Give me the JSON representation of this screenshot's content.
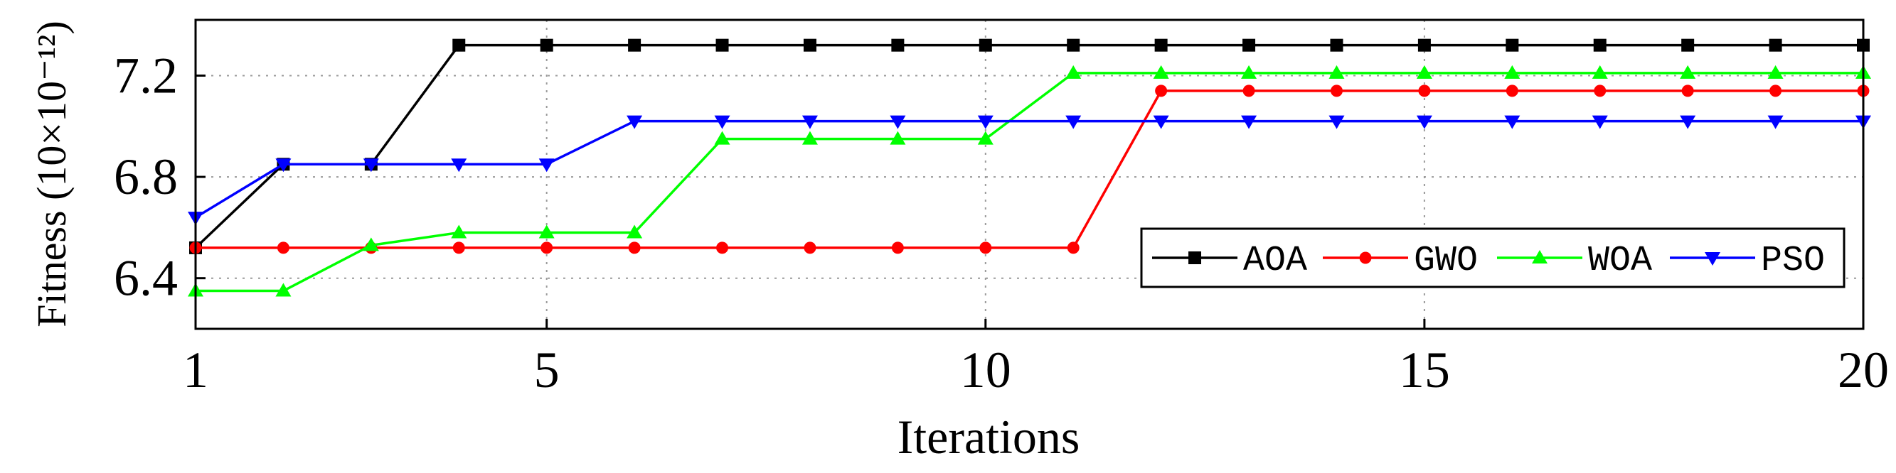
{
  "chart_data": {
    "type": "line",
    "xlabel": "Iterations",
    "ylabel": "Fitness (10×10⁻¹²)",
    "xlim": [
      1,
      20
    ],
    "ylim": [
      6.2,
      7.42
    ],
    "xticks": [
      1,
      5,
      10,
      15,
      20
    ],
    "xtick_labels": [
      "1",
      "5",
      "10",
      "15",
      "20"
    ],
    "yticks": [
      6.4,
      6.8,
      7.2
    ],
    "ytick_labels": [
      "6.4",
      "6.8",
      "7.2"
    ],
    "grid": true,
    "legend_placement": "bottom-right, single row",
    "series": [
      {
        "name": "AOA",
        "color": "#000000",
        "marker": "square",
        "x": [
          1,
          2,
          3,
          4,
          5,
          6,
          7,
          8,
          9,
          10,
          11,
          12,
          13,
          14,
          15,
          16,
          17,
          18,
          19,
          20
        ],
        "values": [
          6.52,
          6.85,
          6.85,
          7.32,
          7.32,
          7.32,
          7.32,
          7.32,
          7.32,
          7.32,
          7.32,
          7.32,
          7.32,
          7.32,
          7.32,
          7.32,
          7.32,
          7.32,
          7.32,
          7.32
        ]
      },
      {
        "name": "GWO",
        "color": "#ff0000",
        "marker": "circle",
        "x": [
          1,
          2,
          3,
          4,
          5,
          6,
          7,
          8,
          9,
          10,
          11,
          12,
          13,
          14,
          15,
          16,
          17,
          18,
          19,
          20
        ],
        "values": [
          6.52,
          6.52,
          6.52,
          6.52,
          6.52,
          6.52,
          6.52,
          6.52,
          6.52,
          6.52,
          6.52,
          7.14,
          7.14,
          7.14,
          7.14,
          7.14,
          7.14,
          7.14,
          7.14,
          7.14
        ]
      },
      {
        "name": "WOA",
        "color": "#00ff00",
        "marker": "triangle-up",
        "x": [
          1,
          2,
          3,
          4,
          5,
          6,
          7,
          8,
          9,
          10,
          11,
          12,
          13,
          14,
          15,
          16,
          17,
          18,
          19,
          20
        ],
        "values": [
          6.35,
          6.35,
          6.53,
          6.58,
          6.58,
          6.58,
          6.95,
          6.95,
          6.95,
          6.95,
          7.21,
          7.21,
          7.21,
          7.21,
          7.21,
          7.21,
          7.21,
          7.21,
          7.21,
          7.21
        ]
      },
      {
        "name": "PSO",
        "color": "#0000ff",
        "marker": "triangle-down",
        "x": [
          1,
          2,
          3,
          4,
          5,
          6,
          7,
          8,
          9,
          10,
          11,
          12,
          13,
          14,
          15,
          16,
          17,
          18,
          19,
          20
        ],
        "values": [
          6.64,
          6.85,
          6.85,
          6.85,
          6.85,
          7.02,
          7.02,
          7.02,
          7.02,
          7.02,
          7.02,
          7.02,
          7.02,
          7.02,
          7.02,
          7.02,
          7.02,
          7.02,
          7.02,
          7.02
        ]
      }
    ]
  }
}
